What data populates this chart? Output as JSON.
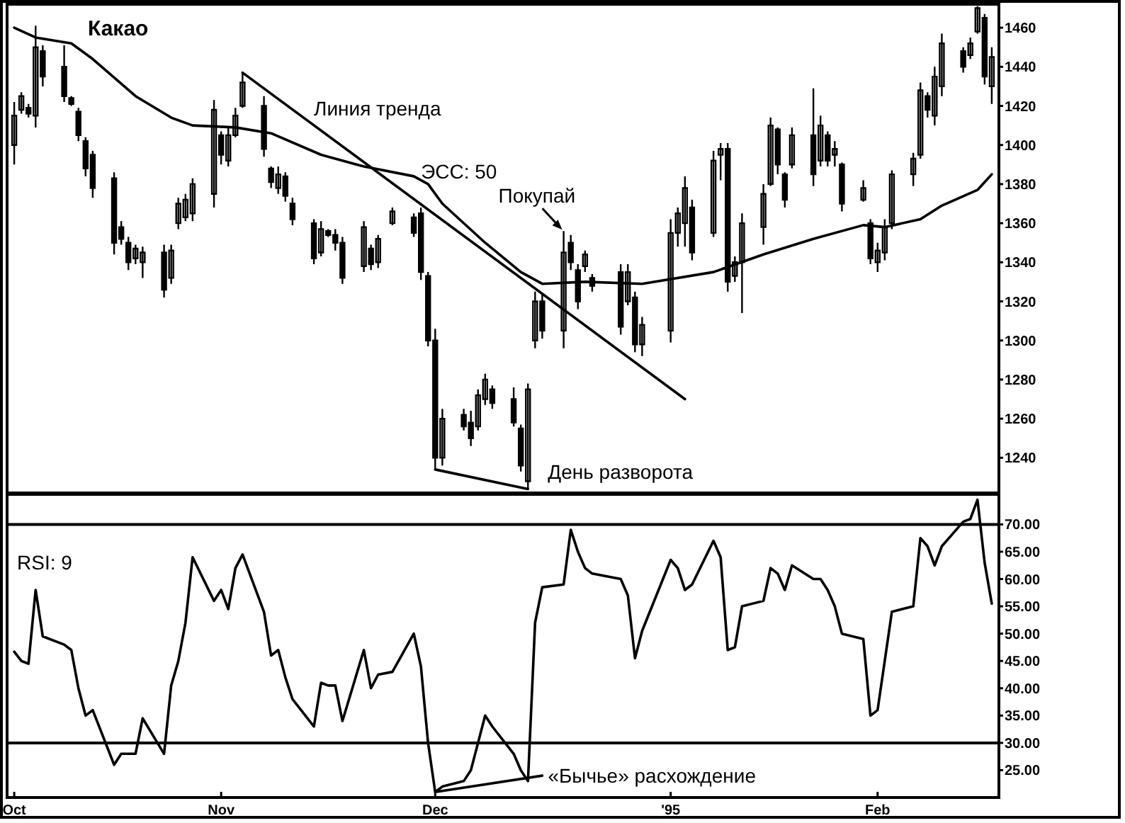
{
  "chart_data": [
    {
      "type": "candlestick",
      "title": "Какао",
      "color": "#000000",
      "x": [
        "1994-10-03",
        "1994-10-04",
        "1994-10-05",
        "1994-10-06",
        "1994-10-07",
        "1994-10-10",
        "1994-10-11",
        "1994-10-12",
        "1994-10-13",
        "1994-10-14",
        "1994-10-17",
        "1994-10-18",
        "1994-10-19",
        "1994-10-20",
        "1994-10-21",
        "1994-10-24",
        "1994-10-25",
        "1994-10-26",
        "1994-10-27",
        "1994-10-28",
        "1994-10-31",
        "1994-11-01",
        "1994-11-02",
        "1994-11-03",
        "1994-11-04",
        "1994-11-07",
        "1994-11-08",
        "1994-11-09",
        "1994-11-10",
        "1994-11-11",
        "1994-11-14",
        "1994-11-15",
        "1994-11-16",
        "1994-11-17",
        "1994-11-18",
        "1994-11-21",
        "1994-11-22",
        "1994-11-23",
        "1994-11-25",
        "1994-11-28",
        "1994-11-29",
        "1994-11-30",
        "1994-12-01",
        "1994-12-02",
        "1994-12-05",
        "1994-12-06",
        "1994-12-07",
        "1994-12-08",
        "1994-12-09",
        "1994-12-12",
        "1994-12-13",
        "1994-12-14",
        "1994-12-15",
        "1994-12-16",
        "1994-12-19",
        "1994-12-20",
        "1994-12-21",
        "1994-12-22",
        "1994-12-23",
        "1994-12-27",
        "1994-12-28",
        "1994-12-29",
        "1994-12-30",
        "1995-01-03",
        "1995-01-04",
        "1995-01-05",
        "1995-01-06",
        "1995-01-09",
        "1995-01-10",
        "1995-01-11",
        "1995-01-12",
        "1995-01-13",
        "1995-01-16",
        "1995-01-17",
        "1995-01-18",
        "1995-01-19",
        "1995-01-20",
        "1995-01-23",
        "1995-01-24",
        "1995-01-25",
        "1995-01-26",
        "1995-01-27",
        "1995-01-30",
        "1995-01-31",
        "1995-02-01",
        "1995-02-02",
        "1995-02-03",
        "1995-02-06",
        "1995-02-07",
        "1995-02-08",
        "1995-02-09",
        "1995-02-10",
        "1995-02-13",
        "1995-02-14",
        "1995-02-15",
        "1995-02-16",
        "1995-02-17"
      ],
      "ohlc": [
        [
          1400,
          1422,
          1390,
          1415
        ],
        [
          1418,
          1427,
          1416,
          1425
        ],
        [
          1419,
          1421,
          1414,
          1416
        ],
        [
          1415,
          1461,
          1409,
          1450
        ],
        [
          1448,
          1451,
          1430,
          1435
        ],
        [
          1440,
          1451,
          1422,
          1425
        ],
        [
          1424,
          1425,
          1420,
          1421
        ],
        [
          1417,
          1419,
          1402,
          1405
        ],
        [
          1402,
          1404,
          1384,
          1388
        ],
        [
          1395,
          1397,
          1373,
          1378
        ],
        [
          1383,
          1386,
          1344,
          1350
        ],
        [
          1358,
          1361,
          1349,
          1352
        ],
        [
          1350,
          1353,
          1336,
          1340
        ],
        [
          1342,
          1349,
          1339,
          1347
        ],
        [
          1340,
          1348,
          1332,
          1345
        ],
        [
          1345,
          1349,
          1322,
          1326
        ],
        [
          1332,
          1349,
          1329,
          1346
        ],
        [
          1360,
          1373,
          1357,
          1370
        ],
        [
          1363,
          1375,
          1361,
          1372
        ],
        [
          1365,
          1383,
          1361,
          1380
        ],
        [
          1375,
          1423,
          1368,
          1418
        ],
        [
          1405,
          1407,
          1390,
          1395
        ],
        [
          1392,
          1409,
          1389,
          1405
        ],
        [
          1405,
          1419,
          1404,
          1415
        ],
        [
          1420,
          1437,
          1419,
          1432
        ],
        [
          1420,
          1425,
          1394,
          1398
        ],
        [
          1388,
          1389,
          1378,
          1381
        ],
        [
          1378,
          1389,
          1375,
          1385
        ],
        [
          1384,
          1386,
          1371,
          1374
        ],
        [
          1370,
          1373,
          1359,
          1362
        ],
        [
          1360,
          1362,
          1339,
          1342
        ],
        [
          1345,
          1361,
          1343,
          1357
        ],
        [
          1356,
          1357,
          1353,
          1354
        ],
        [
          1354,
          1357,
          1346,
          1350
        ],
        [
          1350,
          1353,
          1329,
          1332
        ],
        [
          1338,
          1361,
          1335,
          1358
        ],
        [
          1347,
          1349,
          1336,
          1339
        ],
        [
          1340,
          1354,
          1337,
          1352
        ],
        [
          1360,
          1368,
          1359,
          1366
        ],
        [
          1363,
          1365,
          1353,
          1355
        ],
        [
          1365,
          1368,
          1331,
          1335
        ],
        [
          1333,
          1335,
          1297,
          1300
        ],
        [
          1300,
          1306,
          1234,
          1240
        ],
        [
          1240,
          1265,
          1236,
          1260
        ],
        [
          1262,
          1265,
          1254,
          1256
        ],
        [
          1258,
          1264,
          1246,
          1250
        ],
        [
          1256,
          1275,
          1254,
          1272
        ],
        [
          1270,
          1283,
          1267,
          1280
        ],
        [
          1275,
          1277,
          1265,
          1268
        ],
        [
          1270,
          1276,
          1256,
          1258
        ],
        [
          1255,
          1257,
          1233,
          1236
        ],
        [
          1228,
          1278,
          1224,
          1275
        ],
        [
          1300,
          1325,
          1296,
          1320
        ],
        [
          1320,
          1324,
          1301,
          1305
        ],
        [
          1305,
          1356,
          1296,
          1345
        ],
        [
          1350,
          1354,
          1336,
          1340
        ],
        [
          1336,
          1339,
          1316,
          1320
        ],
        [
          1338,
          1346,
          1335,
          1344
        ],
        [
          1332,
          1334,
          1325,
          1328
        ],
        [
          1335,
          1339,
          1303,
          1307
        ],
        [
          1320,
          1339,
          1318,
          1335
        ],
        [
          1322,
          1325,
          1294,
          1298
        ],
        [
          1298,
          1312,
          1292,
          1308
        ],
        [
          1305,
          1362,
          1299,
          1355
        ],
        [
          1355,
          1368,
          1348,
          1365
        ],
        [
          1360,
          1384,
          1348,
          1378
        ],
        [
          1368,
          1372,
          1341,
          1345
        ],
        [
          1355,
          1397,
          1353,
          1392
        ],
        [
          1395,
          1401,
          1382,
          1398
        ],
        [
          1398,
          1401,
          1325,
          1330
        ],
        [
          1333,
          1343,
          1330,
          1340
        ],
        [
          1340,
          1365,
          1314,
          1360
        ],
        [
          1358,
          1380,
          1349,
          1375
        ],
        [
          1380,
          1414,
          1379,
          1410
        ],
        [
          1408,
          1409,
          1385,
          1390
        ],
        [
          1385,
          1386,
          1368,
          1372
        ],
        [
          1390,
          1409,
          1388,
          1405
        ],
        [
          1405,
          1429,
          1379,
          1385
        ],
        [
          1392,
          1415,
          1389,
          1410
        ],
        [
          1405,
          1407,
          1389,
          1392
        ],
        [
          1395,
          1402,
          1389,
          1398
        ],
        [
          1390,
          1391,
          1366,
          1370
        ],
        [
          1372,
          1382,
          1371,
          1378
        ],
        [
          1360,
          1362,
          1339,
          1342
        ],
        [
          1340,
          1350,
          1335,
          1346
        ],
        [
          1345,
          1362,
          1341,
          1358
        ],
        [
          1360,
          1387,
          1357,
          1385
        ],
        [
          1385,
          1396,
          1379,
          1393
        ],
        [
          1395,
          1432,
          1393,
          1428
        ],
        [
          1425,
          1427,
          1414,
          1418
        ],
        [
          1415,
          1440,
          1410,
          1435
        ],
        [
          1430,
          1457,
          1425,
          1452
        ],
        [
          1448,
          1450,
          1437,
          1440
        ],
        [
          1446,
          1455,
          1444,
          1452
        ],
        [
          1458,
          1471,
          1457,
          1470
        ],
        [
          1465,
          1467,
          1431,
          1435
        ],
        [
          1430,
          1450,
          1421,
          1445
        ]
      ],
      "series": [
        {
          "type": "line",
          "color": "#000000",
          "x": [
            "1994-10-03",
            "1994-10-06",
            "1994-10-11",
            "1994-10-14",
            "1994-10-20",
            "1994-10-25",
            "1994-10-28",
            "1994-11-03",
            "1994-11-08",
            "1994-11-15",
            "1994-11-21",
            "1994-11-28",
            "1994-11-30",
            "1994-12-02",
            "1994-12-08",
            "1994-12-13",
            "1994-12-16",
            "1994-12-22",
            "1994-12-30",
            "1995-01-09",
            "1995-01-16",
            "1995-01-23",
            "1995-01-30",
            "1995-02-02",
            "1995-02-07",
            "1995-02-10",
            "1995-02-15",
            "1995-02-17"
          ],
          "values": [
            1460,
            1455,
            1452,
            1444,
            1425,
            1414,
            1410,
            1409,
            1406,
            1395,
            1389,
            1384,
            1380,
            1370,
            1350,
            1335,
            1329,
            1330,
            1329,
            1335,
            1344,
            1352,
            1359,
            1358,
            1362,
            1369,
            1377,
            1385
          ]
        },
        {
          "type": "line",
          "color": "#000000",
          "x": [
            "1994-11-04",
            "1995-01-05"
          ],
          "values": [
            1437,
            1270
          ]
        },
        {
          "type": "line",
          "color": "#000000",
          "x": [
            "1994-12-01",
            "1994-12-14"
          ],
          "values": [
            1234,
            1224
          ]
        }
      ],
      "xlim": [
        "1994-10-02",
        "1995-02-18"
      ],
      "ylim": [
        1222,
        1472
      ],
      "yticks": [
        1240,
        1260,
        1280,
        1300,
        1320,
        1340,
        1360,
        1380,
        1400,
        1420,
        1440,
        1460
      ],
      "tick_labels": "y",
      "annotations": [
        {
          "text": "Линия тренда",
          "x": "1994-11-14",
          "y": 1415
        },
        {
          "text": "ЭСС: 50",
          "x": "1994-11-29",
          "y": 1383
        },
        {
          "text": "Покупай",
          "x": "1994-12-19",
          "y": 1356
        },
        {
          "text": "День разворота",
          "x": "1994-12-14",
          "y": 1224
        }
      ]
    },
    {
      "type": "line",
      "title": "RSI: 9",
      "x": [
        "1994-10-03",
        "1994-10-04",
        "1994-10-05",
        "1994-10-06",
        "1994-10-07",
        "1994-10-10",
        "1994-10-11",
        "1994-10-12",
        "1994-10-13",
        "1994-10-14",
        "1994-10-17",
        "1994-10-18",
        "1994-10-19",
        "1994-10-20",
        "1994-10-21",
        "1994-10-24",
        "1994-10-25",
        "1994-10-26",
        "1994-10-27",
        "1994-10-28",
        "1994-10-31",
        "1994-11-01",
        "1994-11-02",
        "1994-11-03",
        "1994-11-04",
        "1994-11-07",
        "1994-11-08",
        "1994-11-09",
        "1994-11-10",
        "1994-11-11",
        "1994-11-14",
        "1994-11-15",
        "1994-11-16",
        "1994-11-17",
        "1994-11-18",
        "1994-11-21",
        "1994-11-22",
        "1994-11-23",
        "1994-11-25",
        "1994-11-28",
        "1994-11-29",
        "1994-11-30",
        "1994-12-01",
        "1994-12-02",
        "1994-12-05",
        "1994-12-06",
        "1994-12-07",
        "1994-12-08",
        "1994-12-09",
        "1994-12-12",
        "1994-12-13",
        "1994-12-14",
        "1994-12-15",
        "1994-12-16",
        "1994-12-19",
        "1994-12-20",
        "1994-12-21",
        "1994-12-22",
        "1994-12-23",
        "1994-12-27",
        "1994-12-28",
        "1994-12-29",
        "1994-12-30",
        "1995-01-03",
        "1995-01-04",
        "1995-01-05",
        "1995-01-06",
        "1995-01-09",
        "1995-01-10",
        "1995-01-11",
        "1995-01-12",
        "1995-01-13",
        "1995-01-16",
        "1995-01-17",
        "1995-01-18",
        "1995-01-19",
        "1995-01-20",
        "1995-01-23",
        "1995-01-24",
        "1995-01-25",
        "1995-01-26",
        "1995-01-27",
        "1995-01-30",
        "1995-01-31",
        "1995-02-01",
        "1995-02-02",
        "1995-02-03",
        "1995-02-06",
        "1995-02-07",
        "1995-02-08",
        "1995-02-09",
        "1995-02-10",
        "1995-02-13",
        "1995-02-14",
        "1995-02-15",
        "1995-02-16",
        "1995-02-17"
      ],
      "series": [
        {
          "color": "#000000",
          "values": [
            46.7,
            45,
            44.5,
            58,
            49.5,
            48,
            47,
            40,
            35,
            36,
            26,
            28,
            28,
            28,
            34.5,
            28,
            40.5,
            45,
            52,
            64,
            56,
            58,
            54.5,
            62,
            64.5,
            54,
            46,
            47,
            42,
            38,
            33,
            41,
            40.5,
            40.5,
            34,
            47,
            40,
            42.5,
            43,
            50,
            44,
            30,
            21,
            22,
            23,
            25,
            30,
            35,
            33,
            28,
            25,
            23,
            52,
            58.5,
            59,
            69,
            65,
            62,
            61,
            60,
            57,
            45.5,
            50.5,
            63.5,
            62,
            58,
            59,
            67,
            64,
            47,
            47.5,
            55,
            56,
            62,
            61,
            58,
            62.5,
            60,
            60,
            58,
            55,
            50,
            49,
            35,
            36,
            45,
            54,
            55,
            67.5,
            66,
            62.5,
            66,
            70.5,
            71,
            74.5,
            63,
            55.5
          ]
        },
        {
          "type": "line",
          "color": "#000000",
          "x": [
            "1994-12-01",
            "1994-12-16"
          ],
          "values": [
            21,
            24
          ]
        }
      ],
      "xlim": [
        "1994-10-02",
        "1995-02-18"
      ],
      "xticks": [
        {
          "value": "1994-10-03",
          "label": "Oct"
        },
        {
          "value": "1994-11-01",
          "label": "Nov"
        },
        {
          "value": "1994-12-01",
          "label": "Dec"
        },
        {
          "value": "1995-01-03",
          "label": "'95"
        },
        {
          "value": "1995-02-01",
          "label": "Feb"
        }
      ],
      "ylim": [
        20,
        75.5
      ],
      "yticks": [
        {
          "value": 25,
          "label": "25.00"
        },
        {
          "value": 30,
          "label": "30.00"
        },
        {
          "value": 35,
          "label": "35.00"
        },
        {
          "value": 40,
          "label": "40.00"
        },
        {
          "value": 45,
          "label": "45.00"
        },
        {
          "value": 50,
          "label": "50.00"
        },
        {
          "value": 55,
          "label": "55.00"
        },
        {
          "value": 60,
          "label": "60.00"
        },
        {
          "value": 65,
          "label": "65.00"
        },
        {
          "value": 70,
          "label": "70.00"
        }
      ],
      "ref_lines": [
        {
          "axis": "y",
          "value": 70
        },
        {
          "axis": "y",
          "value": 30
        }
      ],
      "annotations": [
        {
          "text": "«Бычье» расхождение",
          "x": "1994-12-16",
          "y": 24
        }
      ]
    }
  ]
}
